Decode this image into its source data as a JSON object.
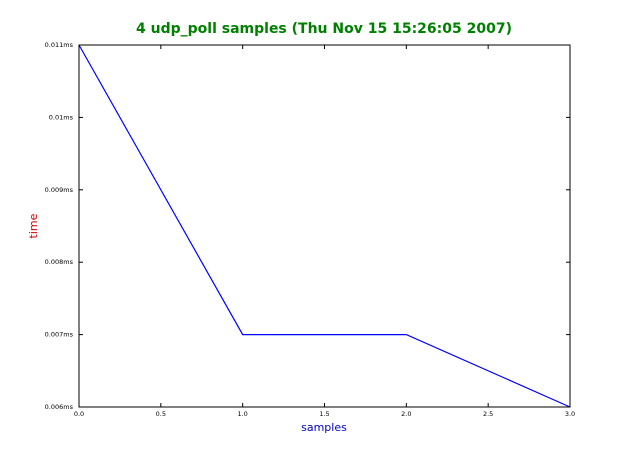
{
  "chart_data": {
    "type": "line",
    "title": "4 udp_poll samples (Thu Nov 15 15:26:05 2007)",
    "xlabel": "samples",
    "ylabel": "time",
    "series": [
      {
        "color": "#0000ff",
        "x": [
          0,
          1,
          2,
          3
        ],
        "values": [
          0.011,
          0.007,
          0.007,
          0.006
        ]
      }
    ],
    "xlim": [
      0,
      3
    ],
    "xticks": [
      {
        "value": 0,
        "label": "0.0"
      },
      0.5,
      {
        "value": 1,
        "label": "1.0"
      },
      1.5,
      {
        "value": 2,
        "label": "2.0"
      },
      2.5,
      {
        "value": 3,
        "label": "3.0"
      }
    ],
    "ylim": [
      0.006,
      0.011
    ],
    "yticks": [
      {
        "value": 0.006,
        "label": "0.006ms"
      },
      {
        "value": 0.007,
        "label": "0.007ms"
      },
      {
        "value": 0.008,
        "label": "0.008ms"
      },
      {
        "value": 0.009,
        "label": "0.009ms"
      },
      {
        "value": 0.01,
        "label": "0.01ms"
      },
      {
        "value": 0.011,
        "label": "0.011ms"
      }
    ],
    "grid": false
  }
}
